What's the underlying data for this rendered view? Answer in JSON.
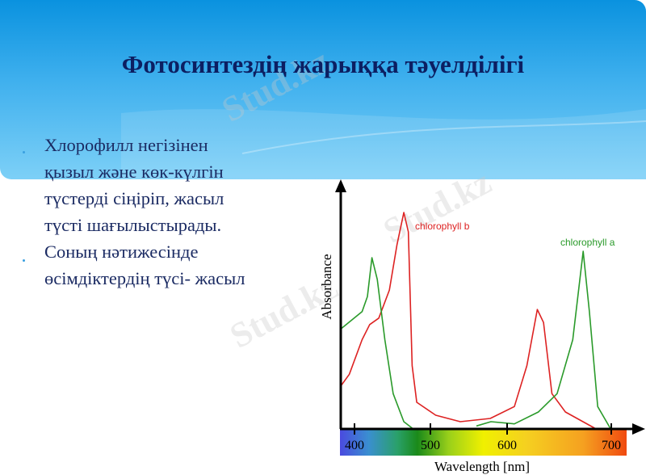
{
  "slide": {
    "title": "Фотосинтездің жарыққа тәуелділігі",
    "body_lines": [
      "Хлорофилл негізінен",
      "қызыл және көк-күлгін",
      "түстерді сіңіріп, жасыл",
      "түсті шағылыстырады.",
      "Соның нәтижесінде",
      "өсімдіктердің түсі- жасыл"
    ],
    "watermark": "Stud.kz"
  },
  "colors": {
    "header_top": "#0a92df",
    "title": "#0c1f62",
    "chlorophyll_a": "#2a9a2a",
    "chlorophyll_b": "#dd2222"
  },
  "chart_data": {
    "type": "line",
    "xlabel": "Wavelength [nm]",
    "ylabel": "Absorbance",
    "xticks": [
      400,
      500,
      600,
      700
    ],
    "x_background": "visible-spectrum-gradient",
    "series": [
      {
        "name": "chlorophyll b",
        "color": "#dd2222",
        "x": [
          384,
          394,
          410,
          420,
          432,
          446,
          456,
          465,
          471,
          476,
          482,
          507,
          539,
          578,
          607,
          619,
          629,
          635,
          643,
          656,
          684
        ],
        "y": [
          0.195,
          0.25,
          0.41,
          0.48,
          0.51,
          0.64,
          0.85,
          1.0,
          0.91,
          0.29,
          0.12,
          0.06,
          0.03,
          0.045,
          0.1,
          0.29,
          0.55,
          0.49,
          0.16,
          0.075,
          0
        ]
      },
      {
        "name": "chlorophyll a",
        "color": "#2a9a2a",
        "x": [
          384,
          410,
          417,
          423,
          430,
          440,
          451,
          465,
          476,
          null,
          560,
          579,
          607,
          630,
          648,
          663,
          673,
          679,
          687,
          699
        ],
        "y": [
          0.46,
          0.54,
          0.61,
          0.79,
          0.69,
          0.41,
          0.16,
          0.03,
          0,
          null,
          0.01,
          0.03,
          0.02,
          0.075,
          0.16,
          0.41,
          0.82,
          0.54,
          0.1,
          0
        ]
      }
    ]
  }
}
